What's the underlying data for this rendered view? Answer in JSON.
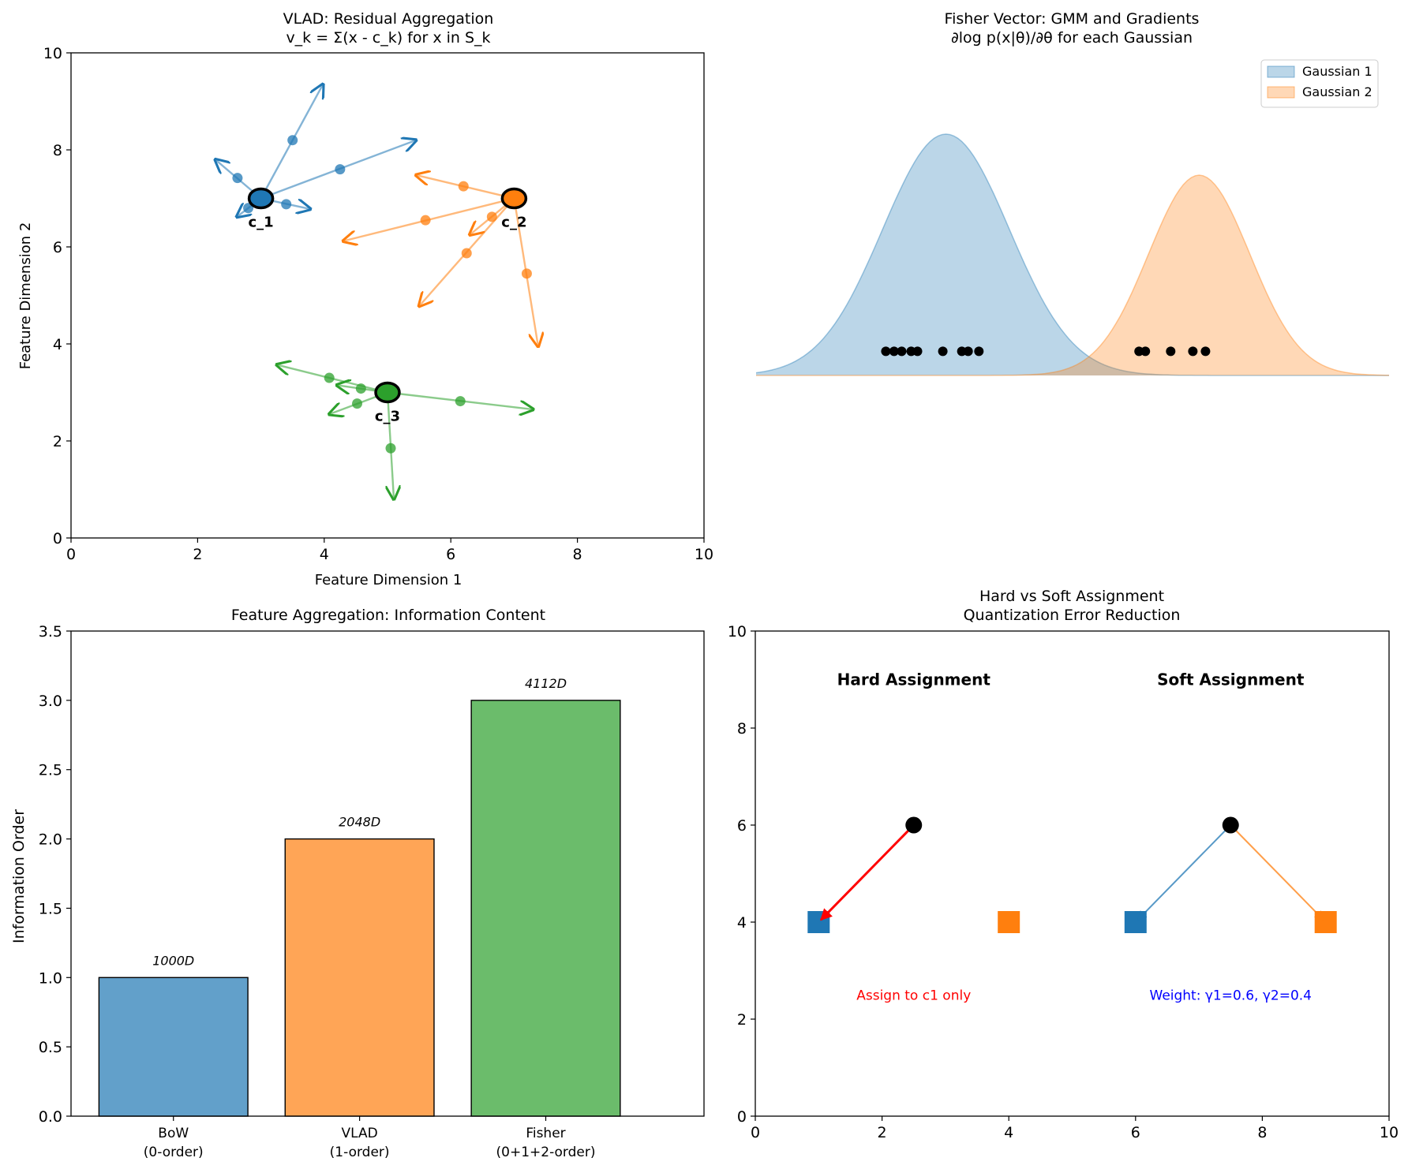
{
  "chart_data": [
    {
      "type": "scatter",
      "title": "VLAD: Residual Aggregation\nv_k = Σ(x - c_k) for x in S_k",
      "xlabel": "Feature Dimension 1",
      "ylabel": "Feature Dimension 2",
      "xlim": [
        0,
        10
      ],
      "ylim": [
        0,
        10
      ],
      "xticks": [
        0,
        2,
        4,
        6,
        8,
        10
      ],
      "yticks": [
        0,
        2,
        4,
        6,
        8,
        10
      ],
      "grid": false,
      "series": [
        {
          "color": "#1f77b4",
          "center": {
            "label": "c_1",
            "x": 3.0,
            "y": 7.0
          },
          "points": [
            {
              "x": 3.5,
              "y": 8.2,
              "tip": [
                3.98,
                9.35
              ]
            },
            {
              "x": 4.25,
              "y": 7.6,
              "tip": [
                5.45,
                8.2
              ]
            },
            {
              "x": 2.63,
              "y": 7.42,
              "tip": [
                2.28,
                7.8
              ]
            },
            {
              "x": 3.4,
              "y": 6.88,
              "tip": [
                3.78,
                6.78
              ]
            },
            {
              "x": 2.8,
              "y": 6.8,
              "tip": [
                2.62,
                6.62
              ]
            }
          ]
        },
        {
          "color": "#ff7f0e",
          "center": {
            "label": "c_2",
            "x": 7.0,
            "y": 7.0
          },
          "points": [
            {
              "x": 6.2,
              "y": 7.25,
              "tip": [
                5.45,
                7.48
              ]
            },
            {
              "x": 5.6,
              "y": 6.55,
              "tip": [
                4.3,
                6.12
              ]
            },
            {
              "x": 6.65,
              "y": 6.62,
              "tip": [
                6.3,
                6.25
              ]
            },
            {
              "x": 6.25,
              "y": 5.87,
              "tip": [
                5.5,
                4.78
              ]
            },
            {
              "x": 7.2,
              "y": 5.45,
              "tip": [
                7.38,
                3.95
              ]
            }
          ]
        },
        {
          "color": "#2ca02c",
          "center": {
            "label": "c_3",
            "x": 5.0,
            "y": 3.0
          },
          "points": [
            {
              "x": 4.08,
              "y": 3.3,
              "tip": [
                3.25,
                3.57
              ]
            },
            {
              "x": 4.58,
              "y": 3.08,
              "tip": [
                4.2,
                3.15
              ]
            },
            {
              "x": 4.52,
              "y": 2.77,
              "tip": [
                4.08,
                2.55
              ]
            },
            {
              "x": 6.15,
              "y": 2.82,
              "tip": [
                7.3,
                2.65
              ]
            },
            {
              "x": 5.05,
              "y": 1.85,
              "tip": [
                5.1,
                0.8
              ]
            }
          ]
        }
      ]
    },
    {
      "type": "area",
      "title": "Fisher Vector: GMM and Gradients\n∂log p(x|θ)/∂θ for each Gaussian",
      "axes_visible": false,
      "legend": "top-right",
      "series": [
        {
          "name": "Gaussian 1",
          "color": "#1f77b4",
          "mean": 3.0,
          "std": 1.0,
          "peak": 1.0
        },
        {
          "name": "Gaussian 2",
          "color": "#ff7f0e",
          "mean": 7.0,
          "std": 0.8,
          "peak": 0.83
        }
      ],
      "x_range": [
        0,
        10
      ],
      "samples": [
        {
          "x": 2.05,
          "group": 1
        },
        {
          "x": 2.18,
          "group": 1
        },
        {
          "x": 2.3,
          "group": 1
        },
        {
          "x": 2.45,
          "group": 1
        },
        {
          "x": 2.55,
          "group": 1
        },
        {
          "x": 2.95,
          "group": 1
        },
        {
          "x": 3.25,
          "group": 1
        },
        {
          "x": 3.35,
          "group": 1
        },
        {
          "x": 3.52,
          "group": 1
        },
        {
          "x": 6.05,
          "group": 2
        },
        {
          "x": 6.15,
          "group": 2
        },
        {
          "x": 6.55,
          "group": 2
        },
        {
          "x": 6.9,
          "group": 2
        },
        {
          "x": 7.1,
          "group": 2
        }
      ],
      "samples_y": 0.1
    },
    {
      "type": "bar",
      "title": "Feature Aggregation: Information Content",
      "xlabel": "",
      "ylabel": "Information Order",
      "categories": [
        "BoW\n(0-order)",
        "VLAD\n(1-order)",
        "Fisher\n(0+1+2-order)"
      ],
      "values": [
        1,
        2,
        3
      ],
      "data_labels": [
        "1000D",
        "2048D",
        "4112D"
      ],
      "colors": [
        "#1f77b4",
        "#ff7f0e",
        "#2ca02c"
      ],
      "ylim": [
        0,
        3.5
      ],
      "yticks": [
        0.0,
        0.5,
        1.0,
        1.5,
        2.0,
        2.5,
        3.0,
        3.5
      ],
      "grid": false
    },
    {
      "type": "scatter",
      "title": "Hard vs Soft Assignment\nQuantization Error Reduction",
      "xlim": [
        0,
        10
      ],
      "ylim": [
        0,
        10
      ],
      "xticks": [
        0,
        2,
        4,
        6,
        8,
        10
      ],
      "yticks": [
        0,
        2,
        4,
        6,
        8,
        10
      ],
      "grid": false,
      "panels": [
        {
          "heading": "Hard Assignment",
          "heading_pos": [
            2.5,
            9.0
          ],
          "descriptor": [
            2.5,
            6.0
          ],
          "centers": [
            {
              "x": 1.0,
              "y": 4.0,
              "color": "#1f77b4"
            },
            {
              "x": 4.0,
              "y": 4.0,
              "color": "#ff7f0e"
            }
          ],
          "arrows": [
            {
              "to": [
                1.0,
                4.0
              ],
              "color": "#ff0000",
              "width": 3
            }
          ],
          "note": "Assign to c1 only",
          "note_color": "#ff0000",
          "note_pos": [
            2.5,
            2.5
          ]
        },
        {
          "heading": "Soft Assignment",
          "heading_pos": [
            7.5,
            9.0
          ],
          "descriptor": [
            7.5,
            6.0
          ],
          "centers": [
            {
              "x": 6.0,
              "y": 4.0,
              "color": "#1f77b4"
            },
            {
              "x": 9.0,
              "y": 4.0,
              "color": "#ff7f0e"
            }
          ],
          "arrows": [
            {
              "to": [
                6.0,
                4.0
              ],
              "color": "#1f77b4",
              "width": 2
            },
            {
              "to": [
                9.0,
                4.0
              ],
              "color": "#ff7f0e",
              "width": 2
            }
          ],
          "note": "Weight: γ1=0.6, γ2=0.4",
          "note_color": "#0000ff",
          "note_pos": [
            7.5,
            2.5
          ]
        }
      ]
    }
  ]
}
